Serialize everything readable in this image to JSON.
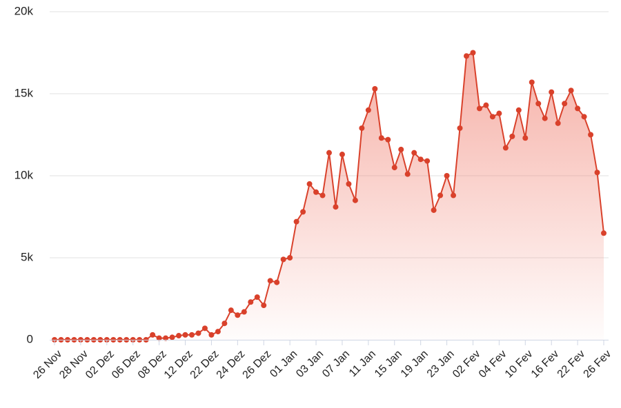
{
  "chart_data": {
    "type": "area",
    "title": "",
    "xlabel": "",
    "ylabel": "",
    "ylim": [
      0,
      20000
    ],
    "yticks": [
      0,
      5000,
      10000,
      15000,
      20000
    ],
    "ytick_labels": [
      "0",
      "5k",
      "10k",
      "15k",
      "20k"
    ],
    "xtick_labels": [
      "26 Nov",
      "28 Nov",
      "02 Dez",
      "06 Dez",
      "08 Dez",
      "12 Dez",
      "22 Dez",
      "24 Dez",
      "26 Dez",
      "01 Jan",
      "03 Jan",
      "07 Jan",
      "11 Jan",
      "15 Jan",
      "19 Jan",
      "23 Jan",
      "02 Fev",
      "04 Fev",
      "10 Fev",
      "16 Fev",
      "22 Fev",
      "26 Fev"
    ],
    "xtick_positions": [
      0,
      4,
      8,
      12,
      16,
      20,
      24,
      28,
      32,
      36,
      40,
      44,
      48,
      52,
      56,
      60,
      64,
      68,
      72,
      76,
      80,
      84
    ],
    "grid": true,
    "legend": "none",
    "colors": {
      "line": "#d9412b",
      "fill_top": "#f07b6b"
    },
    "series": [
      {
        "values": [
          0,
          0,
          0,
          0,
          0,
          0,
          0,
          0,
          0,
          0,
          0,
          0,
          0,
          0,
          0,
          300,
          100,
          100,
          150,
          250,
          300,
          300,
          400,
          700,
          300,
          500,
          1000,
          1800,
          1500,
          1700,
          2300,
          2600,
          2100,
          3600,
          3500,
          4900,
          5000,
          7200,
          7800,
          9500,
          9000,
          8800,
          11400,
          8100,
          11300,
          9500,
          8500,
          12900,
          14000,
          15300,
          12300,
          12200,
          10500,
          11600,
          10100,
          11400,
          11000,
          10900,
          7900,
          8800,
          10000,
          8800,
          12900,
          17300,
          17500,
          14100,
          14300,
          13600,
          13800,
          11700,
          12400,
          14000,
          12300,
          15700,
          14400,
          13500,
          15100,
          13200,
          14400,
          15200,
          14100,
          13600,
          12500,
          10200,
          6500
        ]
      }
    ]
  }
}
